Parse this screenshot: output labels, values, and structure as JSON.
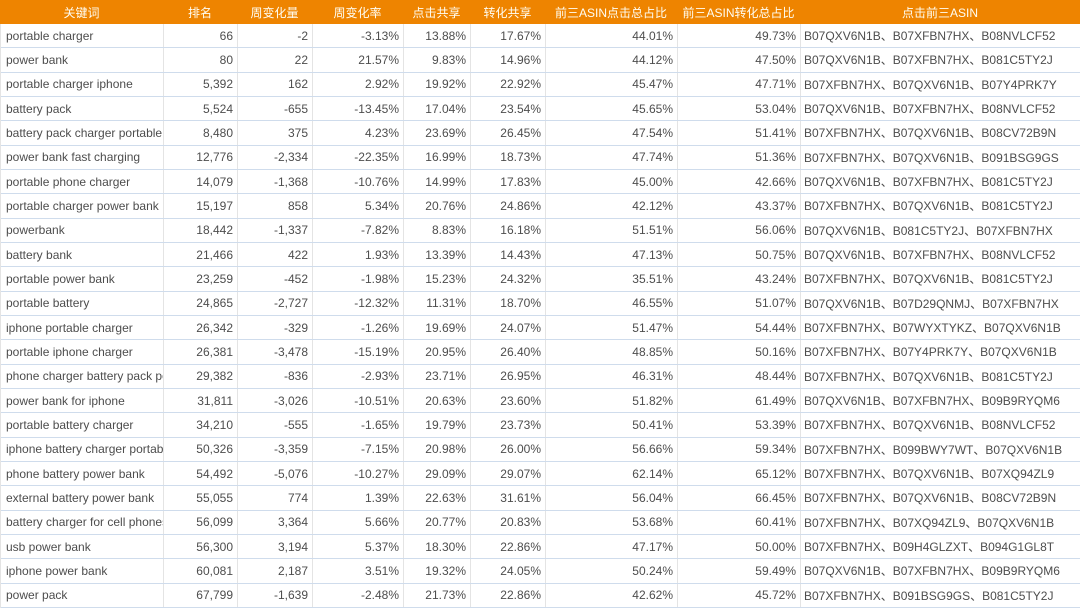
{
  "colors": {
    "header_bg": "#ee8400",
    "header_text": "#fffdf2",
    "row_text": "#4d4d4d",
    "horizontal_border": "#cfdcec",
    "vertical_border": "#e4e4e4"
  },
  "table": {
    "columns": [
      {
        "key": "keyword",
        "label": "关键词",
        "align": "left"
      },
      {
        "key": "rank",
        "label": "排名",
        "align": "right"
      },
      {
        "key": "weekly-change",
        "label": "周变化量",
        "align": "right"
      },
      {
        "key": "weekly-change-rate",
        "label": "周变化率",
        "align": "right"
      },
      {
        "key": "click-share",
        "label": "点击共享",
        "align": "right"
      },
      {
        "key": "conversion-share",
        "label": "转化共享",
        "align": "right"
      },
      {
        "key": "top3-asin-click-share",
        "label": "前三ASIN点击总占比",
        "align": "right"
      },
      {
        "key": "top3-asin-conversion-share",
        "label": "前三ASIN转化总占比",
        "align": "right"
      },
      {
        "key": "top3-clicked-asins",
        "label": "点击前三ASIN",
        "align": "left"
      }
    ],
    "rows": [
      [
        "portable charger",
        "66",
        "-2",
        "-3.13%",
        "13.88%",
        "17.67%",
        "44.01%",
        "49.73%",
        "B07QXV6N1B、B07XFBN7HX、B08NVLCF52"
      ],
      [
        "power bank",
        "80",
        "22",
        "21.57%",
        "9.83%",
        "14.96%",
        "44.12%",
        "47.50%",
        "B07QXV6N1B、B07XFBN7HX、B081C5TY2J"
      ],
      [
        "portable charger iphone",
        "5,392",
        "162",
        "2.92%",
        "19.92%",
        "22.92%",
        "45.47%",
        "47.71%",
        "B07XFBN7HX、B07QXV6N1B、B07Y4PRK7Y"
      ],
      [
        "battery pack",
        "5,524",
        "-655",
        "-13.45%",
        "17.04%",
        "23.54%",
        "45.65%",
        "53.04%",
        "B07QXV6N1B、B07XFBN7HX、B08NVLCF52"
      ],
      [
        "battery pack charger portable",
        "8,480",
        "375",
        "4.23%",
        "23.69%",
        "26.45%",
        "47.54%",
        "51.41%",
        "B07XFBN7HX、B07QXV6N1B、B08CV72B9N"
      ],
      [
        "power bank fast charging",
        "12,776",
        "-2,334",
        "-22.35%",
        "16.99%",
        "18.73%",
        "47.74%",
        "51.36%",
        "B07XFBN7HX、B07QXV6N1B、B091BSG9GS"
      ],
      [
        "portable phone charger",
        "14,079",
        "-1,368",
        "-10.76%",
        "14.99%",
        "17.83%",
        "45.00%",
        "42.66%",
        "B07QXV6N1B、B07XFBN7HX、B081C5TY2J"
      ],
      [
        "portable charger power bank",
        "15,197",
        "858",
        "5.34%",
        "20.76%",
        "24.86%",
        "42.12%",
        "43.37%",
        "B07XFBN7HX、B07QXV6N1B、B081C5TY2J"
      ],
      [
        "powerbank",
        "18,442",
        "-1,337",
        "-7.82%",
        "8.83%",
        "16.18%",
        "51.51%",
        "56.06%",
        "B07QXV6N1B、B081C5TY2J、B07XFBN7HX"
      ],
      [
        "battery bank",
        "21,466",
        "422",
        "1.93%",
        "13.39%",
        "14.43%",
        "47.13%",
        "50.75%",
        "B07QXV6N1B、B07XFBN7HX、B08NVLCF52"
      ],
      [
        "portable power bank",
        "23,259",
        "-452",
        "-1.98%",
        "15.23%",
        "24.32%",
        "35.51%",
        "43.24%",
        "B07XFBN7HX、B07QXV6N1B、B081C5TY2J"
      ],
      [
        "portable battery",
        "24,865",
        "-2,727",
        "-12.32%",
        "11.31%",
        "18.70%",
        "46.55%",
        "51.07%",
        "B07QXV6N1B、B07D29QNMJ、B07XFBN7HX"
      ],
      [
        "iphone portable charger",
        "26,342",
        "-329",
        "-1.26%",
        "19.69%",
        "24.07%",
        "51.47%",
        "54.44%",
        "B07XFBN7HX、B07WYXTYKZ、B07QXV6N1B"
      ],
      [
        "portable iphone charger",
        "26,381",
        "-3,478",
        "-15.19%",
        "20.95%",
        "26.40%",
        "48.85%",
        "50.16%",
        "B07XFBN7HX、B07Y4PRK7Y、B07QXV6N1B"
      ],
      [
        "phone charger battery pack po",
        "29,382",
        "-836",
        "-2.93%",
        "23.71%",
        "26.95%",
        "46.31%",
        "48.44%",
        "B07XFBN7HX、B07QXV6N1B、B081C5TY2J"
      ],
      [
        "power bank for iphone",
        "31,811",
        "-3,026",
        "-10.51%",
        "20.63%",
        "23.60%",
        "51.82%",
        "61.49%",
        "B07QXV6N1B、B07XFBN7HX、B09B9RYQM6"
      ],
      [
        "portable battery charger",
        "34,210",
        "-555",
        "-1.65%",
        "19.79%",
        "23.73%",
        "50.41%",
        "53.39%",
        "B07XFBN7HX、B07QXV6N1B、B08NVLCF52"
      ],
      [
        "iphone battery charger portable",
        "50,326",
        "-3,359",
        "-7.15%",
        "20.98%",
        "26.00%",
        "56.66%",
        "59.34%",
        "B07XFBN7HX、B099BWY7WT、B07QXV6N1B"
      ],
      [
        "phone battery power bank",
        "54,492",
        "-5,076",
        "-10.27%",
        "29.09%",
        "29.07%",
        "62.14%",
        "65.12%",
        "B07XFBN7HX、B07QXV6N1B、B07XQ94ZL9"
      ],
      [
        "external battery power bank",
        "55,055",
        "774",
        "1.39%",
        "22.63%",
        "31.61%",
        "56.04%",
        "66.45%",
        "B07XFBN7HX、B07QXV6N1B、B08CV72B9N"
      ],
      [
        "battery charger for cell phones",
        "56,099",
        "3,364",
        "5.66%",
        "20.77%",
        "20.83%",
        "53.68%",
        "60.41%",
        "B07XFBN7HX、B07XQ94ZL9、B07QXV6N1B"
      ],
      [
        "usb power bank",
        "56,300",
        "3,194",
        "5.37%",
        "18.30%",
        "22.86%",
        "47.17%",
        "50.00%",
        "B07XFBN7HX、B09H4GLZXT、B094G1GL8T"
      ],
      [
        "iphone power bank",
        "60,081",
        "2,187",
        "3.51%",
        "19.32%",
        "24.05%",
        "50.24%",
        "59.49%",
        "B07QXV6N1B、B07XFBN7HX、B09B9RYQM6"
      ],
      [
        "power pack",
        "67,799",
        "-1,639",
        "-2.48%",
        "21.73%",
        "22.86%",
        "42.62%",
        "45.72%",
        "B07XFBN7HX、B091BSG9GS、B081C5TY2J"
      ]
    ]
  }
}
